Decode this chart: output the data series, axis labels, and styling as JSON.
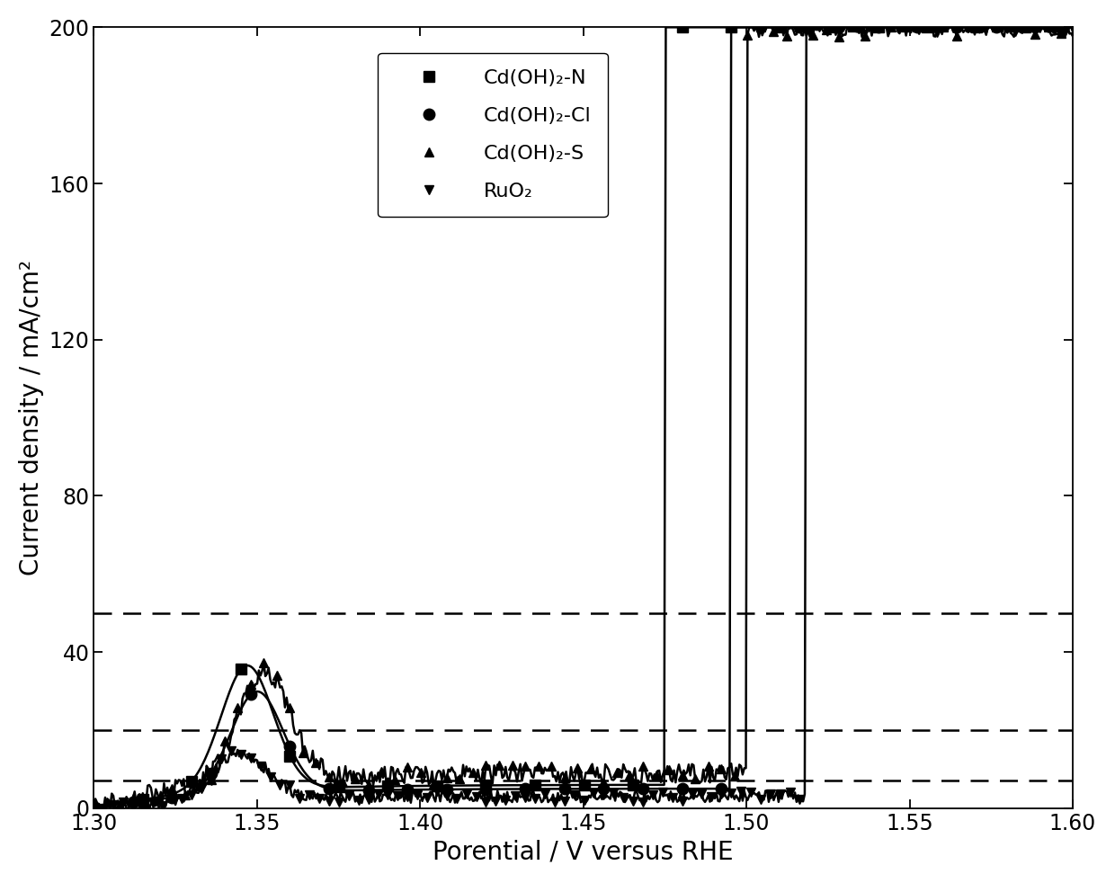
{
  "title": "",
  "xlabel": "Porential / V versus RHE",
  "ylabel": "Current density / mA/cm²",
  "xlim": [
    1.3,
    1.6
  ],
  "ylim": [
    0,
    200
  ],
  "xticks": [
    1.3,
    1.35,
    1.4,
    1.45,
    1.5,
    1.55,
    1.6
  ],
  "yticks": [
    0,
    40,
    80,
    120,
    160,
    200
  ],
  "hlines": [
    7,
    20,
    50
  ],
  "background_color": "#ffffff",
  "tick_direction": "in",
  "label_fontsize": 20,
  "tick_fontsize": 17,
  "legend_fontsize": 16
}
